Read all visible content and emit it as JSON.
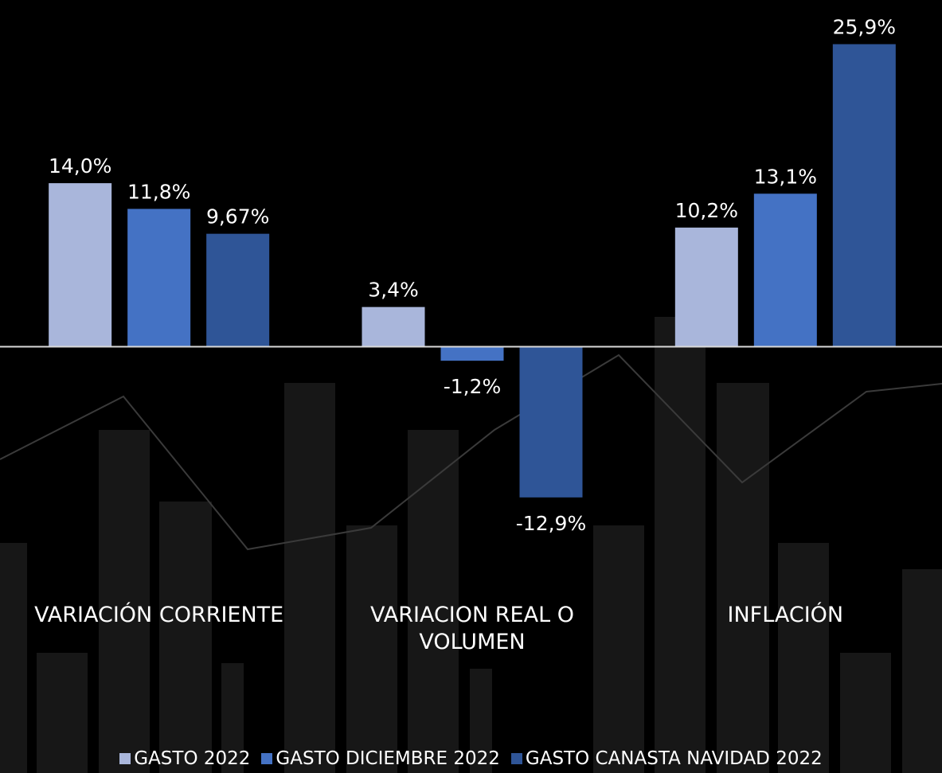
{
  "chart_data": {
    "type": "bar",
    "categories": [
      "VARIACIÓN CORRIENTE",
      "VARIACION REAL O VOLUMEN",
      "INFLACIÓN"
    ],
    "series": [
      {
        "name": "GASTO 2022",
        "color": "#a9b6db",
        "values": [
          14.0,
          3.4,
          10.2
        ],
        "value_labels": [
          "14,0%",
          "3,4%",
          "10,2%"
        ]
      },
      {
        "name": "GASTO DICIEMBRE 2022",
        "color": "#4472c4",
        "values": [
          11.8,
          -1.2,
          13.1
        ],
        "value_labels": [
          "11,8%",
          "-1,2%",
          "13,1%"
        ]
      },
      {
        "name": "GASTO CANASTA NAVIDAD 2022",
        "color": "#2f5597",
        "values": [
          9.67,
          -12.9,
          25.9
        ],
        "value_labels": [
          "9,67%",
          "-12,9%",
          "25,9%"
        ]
      }
    ],
    "ylim": [
      -20,
      29
    ]
  }
}
